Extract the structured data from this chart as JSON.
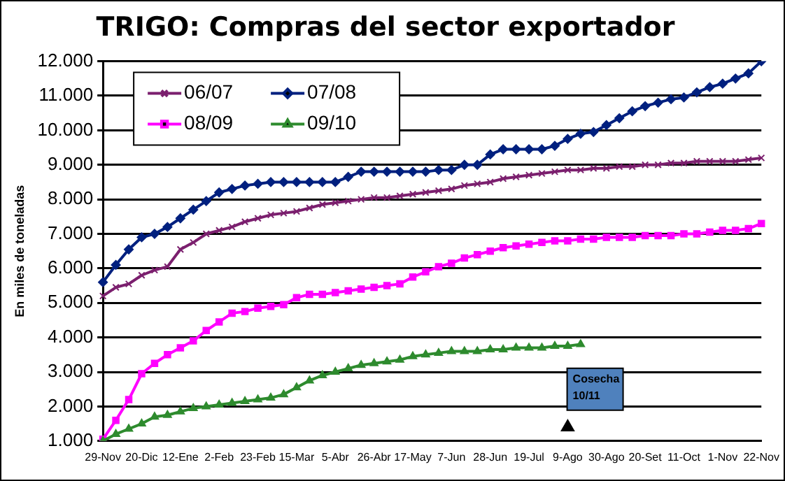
{
  "chart_data": {
    "type": "line",
    "title": "TRIGO: Compras del sector exportador",
    "ylabel": "En miles de toneladas",
    "categories": [
      "29-Nov",
      null,
      null,
      "20-Dic",
      null,
      null,
      "12-Ene",
      null,
      null,
      "2-Feb",
      null,
      null,
      "23-Feb",
      null,
      null,
      "15-Mar",
      null,
      null,
      "5-Abr",
      null,
      null,
      "26-Abr",
      null,
      null,
      "17-May",
      null,
      null,
      "7-Jun",
      null,
      null,
      "28-Jun",
      null,
      null,
      "19-Jul",
      null,
      null,
      "9-Ago",
      null,
      null,
      "30-Ago",
      null,
      null,
      "20-Set",
      null,
      null,
      "11-Oct",
      null,
      null,
      "1-Nov",
      null,
      null,
      "22-Nov"
    ],
    "series": [
      {
        "name": "06/07",
        "color": "#7b1f6e",
        "marker": "cross",
        "values": [
          5200,
          5450,
          5550,
          5800,
          5950,
          6050,
          6550,
          6750,
          7000,
          7100,
          7200,
          7350,
          7450,
          7550,
          7600,
          7650,
          7750,
          7850,
          7900,
          7950,
          8000,
          8050,
          8050,
          8100,
          8150,
          8200,
          8250,
          8300,
          8400,
          8450,
          8500,
          8600,
          8650,
          8700,
          8750,
          8800,
          8850,
          8850,
          8900,
          8900,
          8950,
          8950,
          9000,
          9000,
          9050,
          9050,
          9100,
          9100,
          9100,
          9100,
          9150,
          9200
        ]
      },
      {
        "name": "07/08",
        "color": "#00207f",
        "marker": "diamond",
        "values": [
          5600,
          6100,
          6550,
          6900,
          7000,
          7200,
          7450,
          7700,
          7950,
          8200,
          8300,
          8400,
          8450,
          8500,
          8500,
          8500,
          8500,
          8500,
          8500,
          8650,
          8800,
          8800,
          8800,
          8800,
          8800,
          8800,
          8850,
          8850,
          9000,
          9000,
          9300,
          9450,
          9450,
          9450,
          9450,
          9550,
          9750,
          9900,
          9950,
          10150,
          10350,
          10550,
          10700,
          10800,
          10900,
          10950,
          11100,
          11250,
          11350,
          11500,
          11650,
          12000
        ]
      },
      {
        "name": "08/09",
        "color": "#ff00ff",
        "marker": "square",
        "values": [
          1050,
          1600,
          2200,
          2950,
          3250,
          3500,
          3700,
          3900,
          4200,
          4450,
          4700,
          4750,
          4850,
          4900,
          4950,
          5150,
          5250,
          5250,
          5300,
          5350,
          5400,
          5450,
          5500,
          5550,
          5750,
          5900,
          6050,
          6150,
          6300,
          6400,
          6500,
          6600,
          6650,
          6700,
          6750,
          6800,
          6800,
          6850,
          6850,
          6900,
          6900,
          6900,
          6950,
          6950,
          6950,
          7000,
          7000,
          7050,
          7100,
          7100,
          7150,
          7300
        ]
      },
      {
        "name": "09/10",
        "color": "#2e8b2e",
        "marker": "triangle",
        "values": [
          1000,
          1200,
          1350,
          1500,
          1700,
          1750,
          1850,
          1950,
          2000,
          2050,
          2100,
          2150,
          2200,
          2250,
          2350,
          2550,
          2750,
          2900,
          3000,
          3100,
          3200,
          3250,
          3300,
          3350,
          3450,
          3500,
          3550,
          3600,
          3600,
          3600,
          3650,
          3650,
          3700,
          3700,
          3700,
          3750,
          3750,
          3800,
          null,
          null,
          null,
          null,
          null,
          null,
          null,
          null,
          null,
          null,
          null,
          null,
          null,
          null
        ]
      },
      {
        "type": "scatter",
        "color": "#000000",
        "marker": "triangle",
        "values": [
          null,
          null,
          null,
          null,
          null,
          null,
          null,
          null,
          null,
          null,
          null,
          null,
          null,
          null,
          null,
          null,
          null,
          null,
          null,
          null,
          null,
          null,
          null,
          null,
          null,
          null,
          null,
          null,
          null,
          null,
          null,
          null,
          null,
          null,
          null,
          null,
          1400,
          null,
          null,
          null,
          null,
          null,
          null,
          null,
          null,
          null,
          null,
          null,
          null,
          null,
          null,
          null
        ]
      }
    ],
    "ylim": [
      1000,
      12000
    ],
    "yticks": [
      {
        "value": 1000,
        "label": "1.000"
      },
      {
        "value": 2000,
        "label": "2.000"
      },
      {
        "value": 3000,
        "label": "3.000"
      },
      {
        "value": 4000,
        "label": "4.000"
      },
      {
        "value": 5000,
        "label": "5.000"
      },
      {
        "value": 6000,
        "label": "6.000"
      },
      {
        "value": 7000,
        "label": "7.000"
      },
      {
        "value": 8000,
        "label": "8.000"
      },
      {
        "value": 9000,
        "label": "9.000"
      },
      {
        "value": 10000,
        "label": "10.000"
      },
      {
        "value": 11000,
        "label": "11.000"
      },
      {
        "value": 12000,
        "label": "12.000"
      }
    ],
    "grid": "y",
    "legend": "top left",
    "line_style": "solid",
    "annotations": [
      "Cosecha\n10/11"
    ]
  }
}
